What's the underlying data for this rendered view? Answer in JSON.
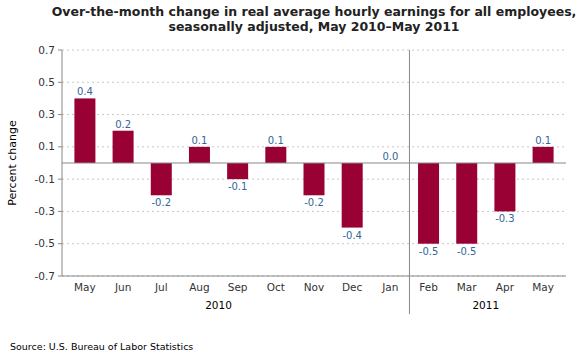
{
  "chart_data": {
    "type": "bar",
    "title": "Over-the-month change in real average hourly earnings for all employees,\nseasonally adjusted, May 2010–May 2011",
    "categories": [
      "May",
      "Jun",
      "Jul",
      "Aug",
      "Sep",
      "Oct",
      "Nov",
      "Dec",
      "Jan",
      "Feb",
      "Mar",
      "Apr",
      "May"
    ],
    "values": [
      0.4,
      0.2,
      -0.2,
      0.1,
      -0.1,
      0.1,
      -0.2,
      -0.4,
      0.0,
      -0.5,
      -0.5,
      -0.3,
      0.1
    ],
    "value_labels": [
      "0.4",
      "0.2",
      "-0.2",
      "0.1",
      "-0.1",
      "0.1",
      "-0.2",
      "-0.4",
      "0.0",
      "-0.5",
      "-0.5",
      "-0.3",
      "0.1"
    ],
    "color": "#990033",
    "y_label": "Percent change",
    "ylim": [
      -0.7,
      0.7
    ],
    "yticks": [
      -0.7,
      -0.5,
      -0.3,
      -0.1,
      0.1,
      0.3,
      0.5,
      0.7
    ],
    "grid": true,
    "data_labels": true,
    "annotations": [
      "2010",
      "2011",
      "Source: U.S. Bureau of Labor Statistics"
    ]
  }
}
